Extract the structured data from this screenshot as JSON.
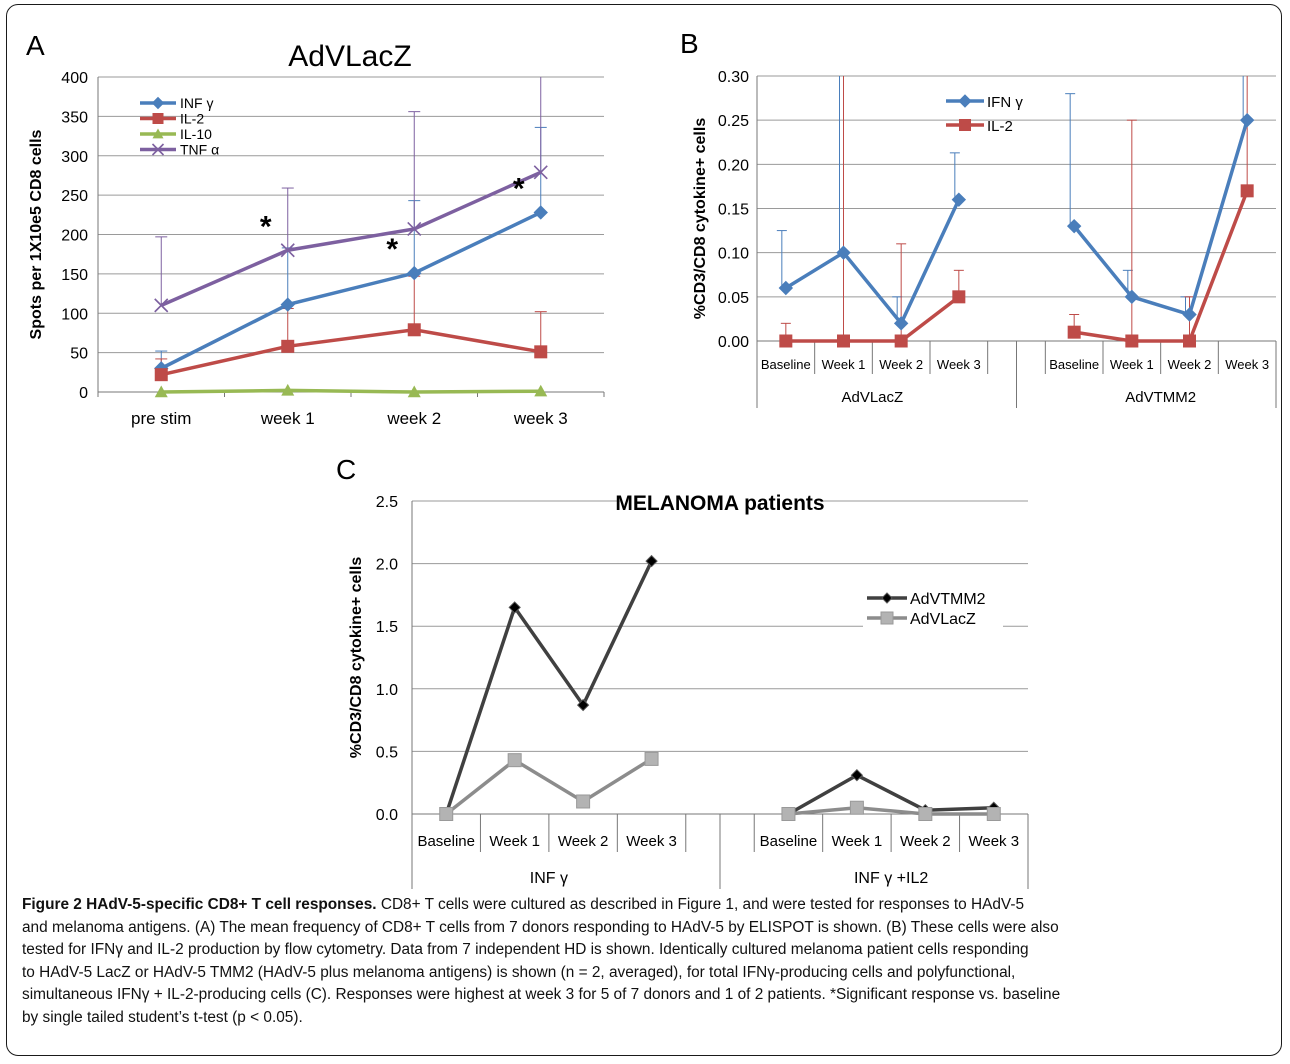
{
  "panels": {
    "A": {
      "letter": "A"
    },
    "B": {
      "letter": "B"
    },
    "C": {
      "letter": "C"
    }
  },
  "chart_data": [
    {
      "id": "A",
      "type": "line",
      "title": "AdVLacZ",
      "ylabel": "Spots per 1X10e5 CD8 cells",
      "xlabel": "",
      "categories": [
        "pre stim",
        "week 1",
        "week 2",
        "week 3"
      ],
      "ylim": [
        0,
        400
      ],
      "yticks": [
        0,
        50,
        100,
        150,
        200,
        250,
        300,
        350,
        400
      ],
      "grid": true,
      "legend_position": "top-left",
      "series": [
        {
          "name": "INF γ",
          "color": "#4a7ebb",
          "marker": "diamond",
          "values": [
            30,
            111,
            151,
            228
          ],
          "error": [
            22,
            72,
            92,
            108
          ]
        },
        {
          "name": "IL-2",
          "color": "#be4b48",
          "marker": "square",
          "values": [
            22,
            58,
            79,
            51
          ],
          "error": [
            20,
            48,
            68,
            51
          ]
        },
        {
          "name": "IL-10",
          "color": "#98b954",
          "marker": "triangle",
          "values": [
            0,
            2,
            0,
            1
          ],
          "error": [
            0,
            0,
            0,
            0
          ]
        },
        {
          "name": "TNF α",
          "color": "#7d60a0",
          "marker": "x",
          "values": [
            110,
            180,
            207,
            279
          ],
          "error": [
            87,
            79,
            149,
            125
          ]
        }
      ],
      "annotations": [
        {
          "text": "*",
          "category": "week 1",
          "series": "TNF α"
        },
        {
          "text": "*",
          "category": "week 2",
          "series": "INF γ"
        },
        {
          "text": "*",
          "category": "week 3",
          "series": "INF γ"
        }
      ]
    },
    {
      "id": "B",
      "type": "line",
      "title": "",
      "ylabel": "%CD3/CD8 cytokine+ cells",
      "groups": [
        "AdVLacZ",
        "AdVTMM2"
      ],
      "categories": [
        "Baseline",
        "Week 1",
        "Week 2",
        "Week 3"
      ],
      "ylim": [
        0,
        0.3
      ],
      "yticks": [
        "0.00",
        "0.05",
        "0.10",
        "0.15",
        "0.20",
        "0.25",
        "0.30"
      ],
      "grid": true,
      "legend_position": "top-left",
      "series": [
        {
          "name": "IFN γ",
          "color": "#4a7ebb",
          "marker": "diamond",
          "values": [
            [
              0.06,
              0.1,
              0.02,
              0.16
            ],
            [
              0.13,
              0.05,
              0.03,
              0.25
            ]
          ],
          "error": [
            [
              0.065,
              0.25,
              0.03,
              0.053
            ],
            [
              0.15,
              0.03,
              0.02,
              0.06
            ]
          ]
        },
        {
          "name": "IL-2",
          "color": "#be4b48",
          "marker": "square",
          "values": [
            [
              0.0,
              0.0,
              0.0,
              0.05
            ],
            [
              0.01,
              0.0,
              0.0,
              0.17
            ]
          ],
          "error": [
            [
              0.02,
              0.3,
              0.11,
              0.03
            ],
            [
              0.02,
              0.25,
              0.05,
              0.13
            ]
          ]
        }
      ]
    },
    {
      "id": "C",
      "type": "line",
      "title": "MELANOMA patients",
      "ylabel": "%CD3/CD8 cytokine+ cells",
      "groups": [
        "INF γ",
        "INF γ +IL2"
      ],
      "categories": [
        "Baseline",
        "Week 1",
        "Week 2",
        "Week 3"
      ],
      "ylim": [
        0,
        2.5
      ],
      "yticks": [
        "0.0",
        "0.5",
        "1.0",
        "1.5",
        "2.0",
        "2.5"
      ],
      "grid": true,
      "legend_position": "right",
      "series": [
        {
          "name": "AdVTMM2",
          "color": "#404040",
          "marker": "diamond",
          "values": [
            [
              0.0,
              1.65,
              0.87,
              2.02
            ],
            [
              0.0,
              0.31,
              0.03,
              0.05
            ]
          ]
        },
        {
          "name": "AdVLacZ",
          "color": "#8c8c8c",
          "marker": "square",
          "values": [
            [
              0.0,
              0.43,
              0.1,
              0.44
            ],
            [
              0.0,
              0.05,
              0.0,
              0.0
            ]
          ]
        }
      ]
    }
  ],
  "caption": {
    "title": "Figure 2 HAdV-5-specific CD8+ T cell responses.",
    "lines": [
      "CD8+ T cells were cultured as described in Figure 1, and were tested for responses to HAdV-5",
      "and melanoma antigens. (A) The mean frequency of CD8+ T cells from 7 donors responding to HAdV-5 by ELISPOT is shown. (B) These cells were also",
      "tested for IFNγ and IL-2 production by flow cytometry. Data from 7 independent HD is shown. Identically cultured melanoma patient cells responding",
      "to HAdV-5 LacZ or HAdV-5 TMM2 (HAdV-5 plus melanoma antigens) is shown (n = 2, averaged), for total IFNγ-producing cells and polyfunctional,",
      "simultaneous IFNγ + IL-2-producing cells (C). Responses were highest at week 3 for 5 of 7 donors and 1 of 2 patients. *Significant response vs. baseline",
      "by single tailed student’s t-test (p < 0.05)."
    ]
  }
}
